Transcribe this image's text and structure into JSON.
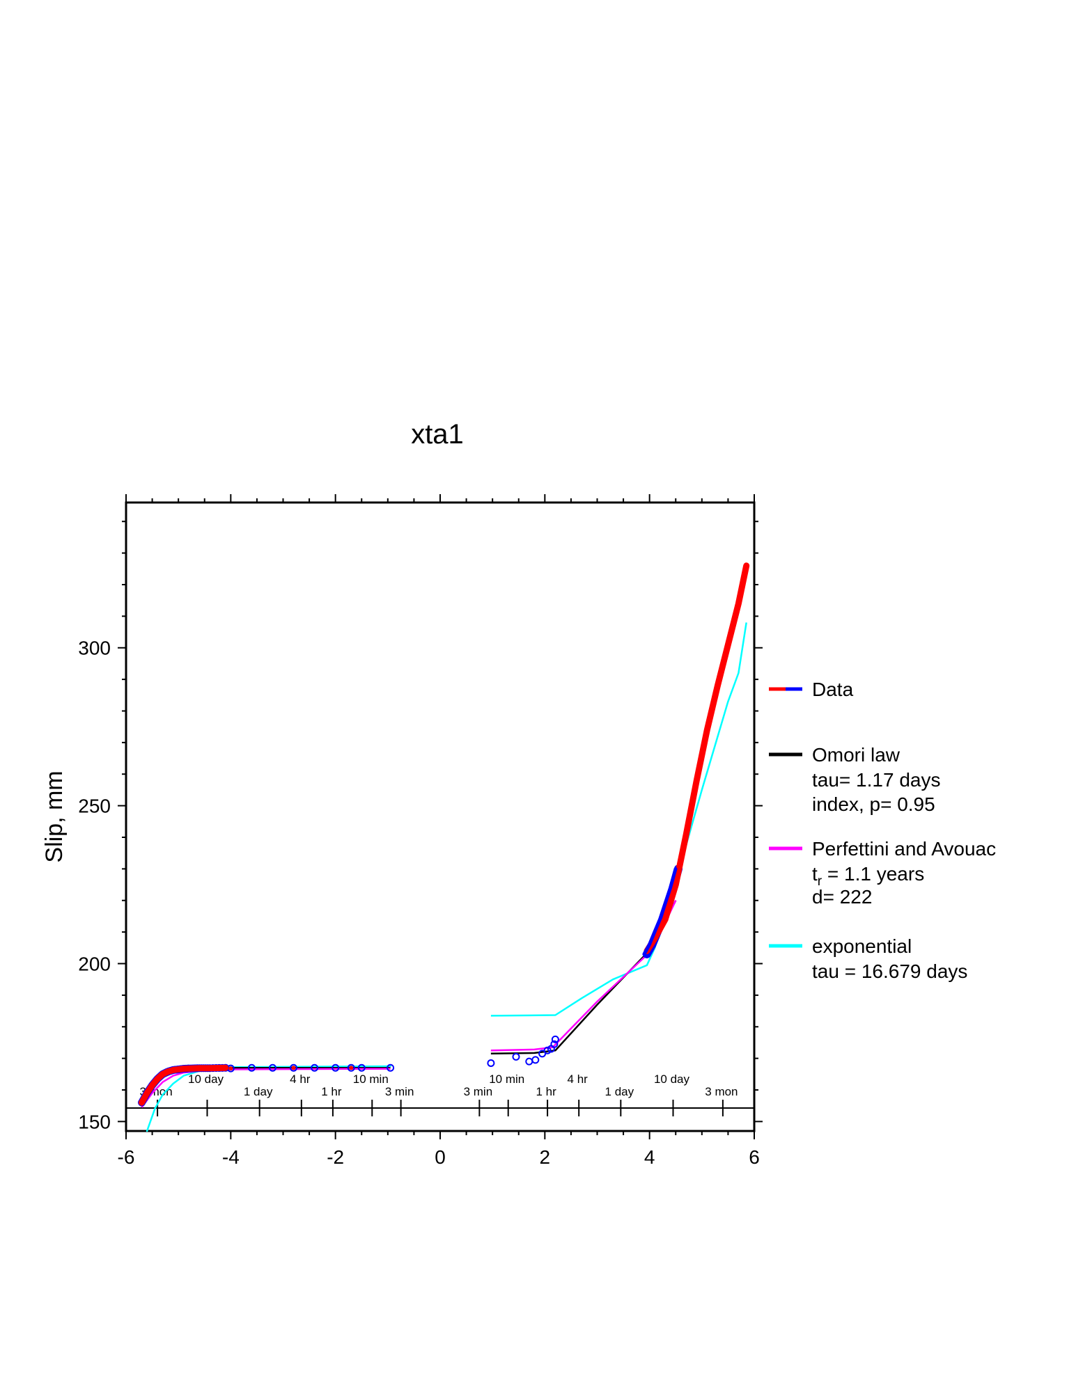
{
  "chart_data": {
    "type": "line",
    "title": "xta1",
    "xlabel": "",
    "ylabel": "Slip, mm",
    "xlim": [
      -6,
      6
    ],
    "ylim": [
      147,
      346
    ],
    "x_ticks": [
      -6,
      -4,
      -2,
      0,
      2,
      4,
      6
    ],
    "y_ticks": [
      150,
      200,
      250,
      300
    ],
    "x_tick_labels": [
      "-6",
      "-4",
      "-2",
      "0",
      "2",
      "4",
      "6"
    ],
    "y_tick_labels": [
      "150",
      "200",
      "250",
      "300"
    ],
    "grid": false,
    "legend_position": "right",
    "time_annotations": [
      {
        "label": "3 mon",
        "x": -5.4,
        "row": 2
      },
      {
        "label": "10 day",
        "x": -4.45,
        "row": 1
      },
      {
        "label": "1 day",
        "x": -3.45,
        "row": 2
      },
      {
        "label": "4 hr",
        "x": -2.65,
        "row": 1
      },
      {
        "label": "1 hr",
        "x": -2.05,
        "row": 2
      },
      {
        "label": "10 min",
        "x": -1.3,
        "row": 1
      },
      {
        "label": "3 min",
        "x": -0.75,
        "row": 2
      },
      {
        "label": "3 min",
        "x": 0.75,
        "row": 2
      },
      {
        "label": "10 min",
        "x": 1.3,
        "row": 1
      },
      {
        "label": "1 hr",
        "x": 2.05,
        "row": 2
      },
      {
        "label": "4 hr",
        "x": 2.65,
        "row": 1
      },
      {
        "label": "1 day",
        "x": 3.45,
        "row": 2
      },
      {
        "label": "10 day",
        "x": 4.45,
        "row": 1
      },
      {
        "label": "3 mon",
        "x": 5.4,
        "row": 2
      }
    ],
    "legend": [
      {
        "name": "Data",
        "color": "#ff0000",
        "secondary_color": "#0000ff",
        "lines": []
      },
      {
        "name": "Omori law",
        "color": "#000000",
        "lines": [
          "tau= 1.17 days",
          "index, p= 0.95"
        ]
      },
      {
        "name": "Perfettini and Avouac",
        "color": "#ff00ff",
        "lines": []
      },
      {
        "name": "exponential",
        "color": "#00ffff",
        "lines": [
          "tau = 16.679 days"
        ]
      }
    ],
    "perfettini_params": {
      "t_prefix": "t",
      "t_sub": "r",
      "t_rest": " = 1.1 years",
      "d": "d= 222"
    },
    "series": [
      {
        "name": "Data (before)",
        "color": "#ff0000",
        "marker_color": "#0000ff",
        "x": [
          -5.7,
          -5.6,
          -5.5,
          -5.4,
          -5.3,
          -5.2,
          -5.1,
          -5.0,
          -4.9,
          -4.8,
          -4.6,
          -4.4,
          -4.1
        ],
        "y": [
          156,
          159,
          161.5,
          163.5,
          165,
          165.8,
          166.3,
          166.5,
          166.7,
          166.8,
          166.9,
          166.9,
          167
        ]
      },
      {
        "name": "Data (before, sparse)",
        "x": [
          -4.0,
          -3.6,
          -3.2,
          -2.8,
          -2.4,
          -2.0,
          -1.7,
          -1.5,
          -0.95
        ],
        "y": [
          166.8,
          167,
          167,
          167,
          167,
          167,
          167,
          167,
          167
        ]
      },
      {
        "name": "Data (after)",
        "color": "#ff0000",
        "marker_color": "#0000ff",
        "x": [
          3.95,
          4.1,
          4.3,
          4.5,
          4.7,
          4.9,
          5.1,
          5.3,
          5.5,
          5.7,
          5.85
        ],
        "y": [
          204,
          208,
          214,
          225,
          241,
          258,
          274,
          288,
          301,
          314,
          326
        ]
      },
      {
        "name": "Data (after, blue)",
        "x": [
          3.95,
          4.05,
          4.15,
          4.25,
          4.35,
          4.45,
          4.55
        ],
        "y": [
          203,
          206,
          210,
          214,
          219,
          224,
          230
        ]
      },
      {
        "name": "Data (after, early points)",
        "x": [
          0.97,
          1.45,
          1.7,
          1.82,
          1.95,
          2.05,
          2.12,
          2.18,
          2.2
        ],
        "y": [
          168.5,
          170.5,
          169,
          169.5,
          171.5,
          172.5,
          173,
          174.5,
          176
        ]
      },
      {
        "name": "Omori law",
        "color": "#000000",
        "x": [
          -5.7,
          -5.5,
          -5.3,
          -5.1,
          -4.9,
          -4.5,
          -4.0,
          -0.95,
          0.97,
          1.8,
          2.2,
          3.0,
          3.9,
          4.1,
          4.5
        ],
        "y": [
          155.5,
          161,
          164,
          165.5,
          166.2,
          166.7,
          167,
          167,
          171.5,
          171.7,
          172.5,
          187,
          202.5,
          207,
          220
        ]
      },
      {
        "name": "Perfettini and Avouac",
        "color": "#ff00ff",
        "x": [
          -5.7,
          -5.5,
          -5.3,
          -5.1,
          -4.9,
          -4.5,
          -4.0,
          -0.95,
          0.97,
          1.8,
          2.15,
          3.0,
          3.9,
          4.1,
          4.5
        ],
        "y": [
          154.5,
          159,
          162.5,
          164.5,
          165.5,
          166.2,
          166.5,
          166.7,
          172.5,
          172.8,
          173.5,
          188,
          202,
          206,
          220
        ]
      },
      {
        "name": "exponential",
        "color": "#00ffff",
        "x": [
          -5.6,
          -5.45,
          -5.3,
          -5.1,
          -4.9,
          -4.6,
          -4.3,
          -4.0,
          -0.95,
          0.97,
          2.2,
          2.7,
          3.3,
          3.95,
          4.1,
          4.5,
          5.0,
          5.5,
          5.7,
          5.85
        ],
        "y": [
          147,
          154,
          158.5,
          162,
          164.5,
          166,
          166.8,
          167.2,
          167.5,
          183.5,
          183.7,
          189,
          195,
          199.5,
          205,
          226,
          255,
          283,
          292,
          308
        ]
      }
    ]
  }
}
